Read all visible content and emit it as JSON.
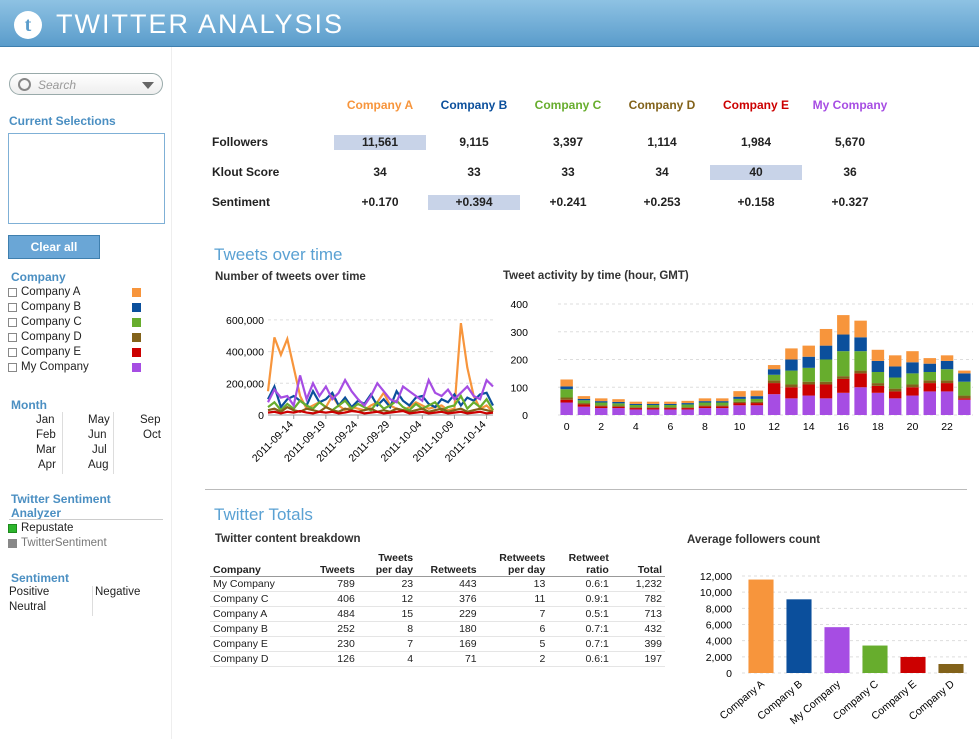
{
  "header": {
    "title": "TWITTER ANALYSIS",
    "logo_letter": "t"
  },
  "sidebar": {
    "search_placeholder": "Search",
    "current_selections_title": "Current Selections",
    "clear_all_label": "Clear all",
    "company_title": "Company",
    "companies": [
      {
        "label": "Company A",
        "color": "#f7953c"
      },
      {
        "label": "Company B",
        "color": "#0b4f9c"
      },
      {
        "label": "Company C",
        "color": "#67ad2d"
      },
      {
        "label": "Company D",
        "color": "#82621a"
      },
      {
        "label": "Company E",
        "color": "#cc0000"
      },
      {
        "label": "My Company",
        "color": "#a64de3"
      }
    ],
    "month_title": "Month",
    "months": [
      "Jan",
      "Feb",
      "Mar",
      "Apr",
      "May",
      "Jun",
      "Jul",
      "Aug",
      "Sep",
      "Oct"
    ],
    "sentiment_analyzer_title": "Twitter Sentiment Analyzer",
    "analyzers": [
      {
        "label": "Repustate",
        "color": "#2cb52c"
      },
      {
        "label": "TwitterSentiment",
        "color": "#888888"
      }
    ],
    "sentiment_title": "Sentiment",
    "sentiments": [
      "Positive",
      "Negative",
      "Neutral"
    ]
  },
  "metrics": {
    "columns": [
      {
        "name": "Company A",
        "color": "#f7953c"
      },
      {
        "name": "Company B",
        "color": "#0b4f9c"
      },
      {
        "name": "Company C",
        "color": "#67ad2d"
      },
      {
        "name": "Company D",
        "color": "#82621a"
      },
      {
        "name": "Company E",
        "color": "#cc0000"
      },
      {
        "name": "My Company",
        "color": "#a64de3"
      }
    ],
    "rows": [
      {
        "label": "Followers",
        "values": [
          "11,561",
          "9,115",
          "3,397",
          "1,114",
          "1,984",
          "5,670"
        ],
        "highlight": 0
      },
      {
        "label": "Klout Score",
        "values": [
          "34",
          "33",
          "33",
          "34",
          "40",
          "36"
        ],
        "highlight": 4
      },
      {
        "label": "Sentiment",
        "values": [
          "+0.170",
          "+0.394",
          "+0.241",
          "+0.253",
          "+0.158",
          "+0.327"
        ],
        "highlight": 1
      }
    ]
  },
  "tweets_over_time": {
    "section_title": "Tweets over time",
    "line_chart_title": "Number of tweets over time",
    "bar_chart_title": "Tweet activity by time (hour, GMT)"
  },
  "totals": {
    "section_title": "Twitter Totals",
    "table_title": "Twitter content breakdown",
    "bar_chart_title": "Average followers count",
    "table_headers": [
      "Company",
      "Tweets",
      "Tweets per day",
      "Retweets",
      "Retweets per day",
      "Retweet ratio",
      "Total"
    ],
    "table_rows": [
      [
        "My Company",
        "789",
        "23",
        "443",
        "13",
        "0.6:1",
        "1,232"
      ],
      [
        "Company C",
        "406",
        "12",
        "376",
        "11",
        "0.9:1",
        "782"
      ],
      [
        "Company A",
        "484",
        "15",
        "229",
        "7",
        "0.5:1",
        "713"
      ],
      [
        "Company B",
        "252",
        "8",
        "180",
        "6",
        "0.7:1",
        "432"
      ],
      [
        "Company E",
        "230",
        "7",
        "169",
        "5",
        "0.7:1",
        "399"
      ],
      [
        "Company D",
        "126",
        "4",
        "71",
        "2",
        "0.6:1",
        "197"
      ]
    ]
  },
  "chart_data": [
    {
      "type": "line",
      "title": "Number of tweets over time",
      "x": [
        "2011-09-10",
        "2011-09-11",
        "2011-09-12",
        "2011-09-13",
        "2011-09-14",
        "2011-09-15",
        "2011-09-16",
        "2011-09-17",
        "2011-09-18",
        "2011-09-19",
        "2011-09-20",
        "2011-09-21",
        "2011-09-22",
        "2011-09-23",
        "2011-09-24",
        "2011-09-25",
        "2011-09-26",
        "2011-09-27",
        "2011-09-28",
        "2011-09-29",
        "2011-09-30",
        "2011-10-01",
        "2011-10-02",
        "2011-10-03",
        "2011-10-04",
        "2011-10-05",
        "2011-10-06",
        "2011-10-07",
        "2011-10-08",
        "2011-10-09",
        "2011-10-10",
        "2011-10-11",
        "2011-10-12",
        "2011-10-13",
        "2011-10-14",
        "2011-10-15"
      ],
      "x_tick_labels": [
        "2011-09-14",
        "2011-09-19",
        "2011-09-24",
        "2011-09-29",
        "2011-10-04",
        "2011-10-09",
        "2011-10-14"
      ],
      "y_ticks": [
        "0",
        "200,000",
        "400,000",
        "600,000"
      ],
      "ylim": [
        0,
        650000
      ],
      "series": [
        {
          "name": "Company A",
          "color": "#f7953c",
          "values": [
            150000,
            490000,
            380000,
            480000,
            300000,
            120000,
            40000,
            60000,
            80000,
            50000,
            120000,
            60000,
            30000,
            50000,
            40000,
            30000,
            60000,
            80000,
            140000,
            60000,
            40000,
            30000,
            50000,
            80000,
            60000,
            40000,
            50000,
            60000,
            30000,
            40000,
            580000,
            300000,
            120000,
            40000,
            60000,
            20000
          ]
        },
        {
          "name": "Company B",
          "color": "#0b4f9c",
          "values": [
            100000,
            180000,
            50000,
            100000,
            120000,
            90000,
            60000,
            150000,
            80000,
            100000,
            140000,
            60000,
            110000,
            50000,
            90000,
            70000,
            130000,
            60000,
            100000,
            50000,
            150000,
            90000,
            60000,
            110000,
            120000,
            70000,
            50000,
            100000,
            80000,
            130000,
            60000,
            110000,
            90000,
            130000,
            140000,
            60000
          ]
        },
        {
          "name": "Company C",
          "color": "#67ad2d",
          "values": [
            50000,
            80000,
            30000,
            70000,
            40000,
            90000,
            60000,
            40000,
            80000,
            50000,
            30000,
            60000,
            90000,
            40000,
            70000,
            50000,
            30000,
            80000,
            40000,
            60000,
            90000,
            50000,
            30000,
            70000,
            40000,
            60000,
            80000,
            30000,
            50000,
            60000,
            120000,
            40000,
            80000,
            50000,
            100000,
            30000
          ]
        },
        {
          "name": "Company D",
          "color": "#82621a",
          "values": [
            30000,
            40000,
            20000,
            50000,
            30000,
            20000,
            40000,
            30000,
            20000,
            50000,
            30000,
            20000,
            40000,
            30000,
            20000,
            30000,
            40000,
            20000,
            30000,
            20000,
            40000,
            30000,
            20000,
            30000,
            40000,
            20000,
            30000,
            40000,
            20000,
            30000,
            40000,
            20000,
            30000,
            40000,
            30000,
            20000
          ]
        },
        {
          "name": "Company E",
          "color": "#cc0000",
          "values": [
            15000,
            20000,
            10000,
            20000,
            15000,
            25000,
            15000,
            10000,
            20000,
            15000,
            20000,
            10000,
            15000,
            25000,
            20000,
            10000,
            15000,
            20000,
            10000,
            15000,
            20000,
            25000,
            10000,
            15000,
            20000,
            10000,
            15000,
            20000,
            10000,
            15000,
            20000,
            10000,
            15000,
            20000,
            10000,
            15000
          ]
        },
        {
          "name": "My Company",
          "color": "#a64de3",
          "values": [
            80000,
            160000,
            110000,
            120000,
            60000,
            250000,
            100000,
            200000,
            120000,
            180000,
            100000,
            140000,
            220000,
            150000,
            100000,
            60000,
            120000,
            200000,
            150000,
            100000,
            80000,
            180000,
            150000,
            120000,
            90000,
            220000,
            140000,
            120000,
            160000,
            100000,
            140000,
            180000,
            120000,
            100000,
            220000,
            180000
          ]
        }
      ]
    },
    {
      "type": "bar",
      "stacked": true,
      "title": "Tweet activity by time (hour, GMT)",
      "categories": [
        "0",
        "1",
        "2",
        "3",
        "4",
        "5",
        "6",
        "7",
        "8",
        "9",
        "10",
        "11",
        "12",
        "13",
        "14",
        "15",
        "16",
        "17",
        "18",
        "19",
        "20",
        "21",
        "22",
        "23"
      ],
      "x_tick_labels": [
        "0",
        "2",
        "4",
        "6",
        "8",
        "10",
        "12",
        "14",
        "16",
        "18",
        "20",
        "22"
      ],
      "y_ticks": [
        "0",
        "100",
        "200",
        "300",
        "400"
      ],
      "ylim": [
        0,
        400
      ],
      "series": [
        {
          "name": "My Company",
          "color": "#a64de3",
          "values": [
            45,
            30,
            25,
            25,
            20,
            20,
            20,
            20,
            25,
            25,
            35,
            35,
            75,
            60,
            70,
            60,
            80,
            100,
            80,
            60,
            70,
            85,
            85,
            55
          ]
        },
        {
          "name": "Company E",
          "color": "#cc0000",
          "values": [
            10,
            8,
            6,
            5,
            5,
            5,
            5,
            5,
            6,
            6,
            8,
            8,
            40,
            40,
            40,
            50,
            50,
            50,
            25,
            25,
            30,
            30,
            30,
            5
          ]
        },
        {
          "name": "Company D",
          "color": "#82621a",
          "values": [
            8,
            5,
            4,
            4,
            3,
            3,
            3,
            3,
            4,
            4,
            5,
            5,
            10,
            10,
            10,
            10,
            10,
            10,
            10,
            10,
            10,
            10,
            10,
            10
          ]
        },
        {
          "name": "Company C",
          "color": "#67ad2d",
          "values": [
            30,
            10,
            10,
            8,
            8,
            8,
            8,
            10,
            10,
            10,
            10,
            10,
            20,
            50,
            50,
            80,
            90,
            70,
            40,
            40,
            40,
            30,
            40,
            50
          ]
        },
        {
          "name": "Company B",
          "color": "#0b4f9c",
          "values": [
            10,
            5,
            5,
            5,
            4,
            4,
            4,
            5,
            5,
            5,
            8,
            10,
            20,
            40,
            40,
            50,
            60,
            50,
            40,
            40,
            40,
            30,
            30,
            30
          ]
        },
        {
          "name": "Company A",
          "color": "#f7953c",
          "values": [
            25,
            10,
            10,
            10,
            8,
            8,
            8,
            8,
            10,
            10,
            20,
            20,
            15,
            40,
            40,
            60,
            70,
            60,
            40,
            40,
            40,
            20,
            20,
            10
          ]
        }
      ]
    },
    {
      "type": "bar",
      "title": "Average followers count",
      "categories": [
        "Company A",
        "Company B",
        "My Company",
        "Company C",
        "Company E",
        "Company D"
      ],
      "colors": [
        "#f7953c",
        "#0b4f9c",
        "#a64de3",
        "#67ad2d",
        "#cc0000",
        "#82621a"
      ],
      "values": [
        11561,
        9115,
        5670,
        3397,
        1984,
        1114
      ],
      "y_ticks": [
        "0",
        "2,000",
        "4,000",
        "6,000",
        "8,000",
        "10,000",
        "12,000"
      ],
      "ylim": [
        0,
        12000
      ]
    }
  ]
}
